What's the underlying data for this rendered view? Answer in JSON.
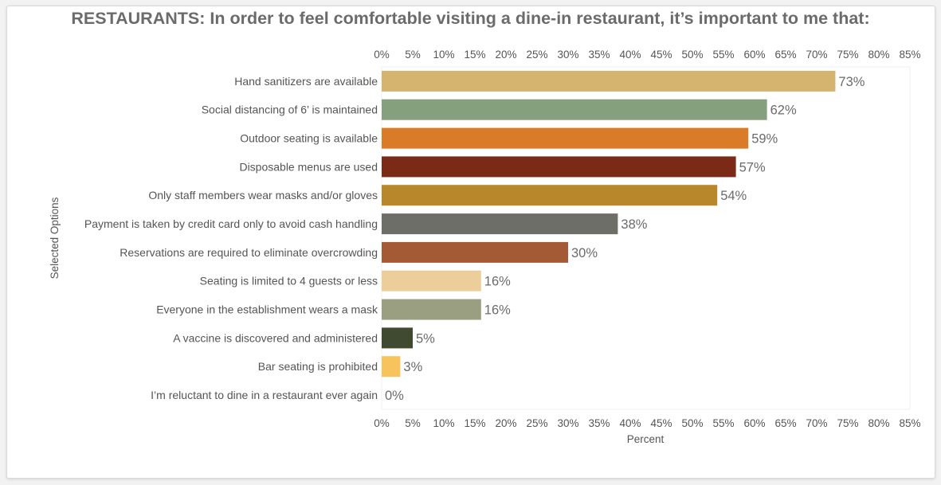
{
  "chart_data": {
    "type": "bar",
    "orientation": "horizontal",
    "title": "RESTAURANTS: In order to feel comfortable visiting a dine-in restaurant, it’s important to me that:",
    "xlabel": "Percent",
    "ylabel": "Selected Options",
    "xlim": [
      0,
      85
    ],
    "x_ticks": [
      "0%",
      "5%",
      "10%",
      "15%",
      "20%",
      "25%",
      "30%",
      "35%",
      "40%",
      "45%",
      "50%",
      "55%",
      "60%",
      "65%",
      "70%",
      "75%",
      "80%",
      "85%"
    ],
    "tick_positions": "top-and-bottom",
    "grid": false,
    "categories": [
      "Hand sanitizers are available",
      "Social distancing of 6’ is maintained",
      "Outdoor seating is available",
      "Disposable menus are used",
      "Only staff members wear masks and/or gloves",
      "Payment is taken by credit card only to avoid cash handling",
      "Reservations are required to eliminate overcrowding",
      "Seating is limited to 4 guests or less",
      "Everyone in the establishment wears a mask",
      "A vaccine is discovered and administered",
      "Bar seating is prohibited",
      "I’m reluctant to dine in a restaurant ever again"
    ],
    "values": [
      73,
      62,
      59,
      57,
      54,
      38,
      30,
      16,
      16,
      5,
      3,
      0
    ],
    "data_labels": [
      "73%",
      "62%",
      "59%",
      "57%",
      "54%",
      "38%",
      "30%",
      "16%",
      "16%",
      "5%",
      "3%",
      "0%"
    ],
    "colors": [
      "#d4b46e",
      "#84a07c",
      "#d97b27",
      "#7b2a18",
      "#b8862b",
      "#6e6e68",
      "#a45a35",
      "#ecce9b",
      "#9a9f82",
      "#404a30",
      "#f7c35c",
      "#cccccc"
    ]
  }
}
